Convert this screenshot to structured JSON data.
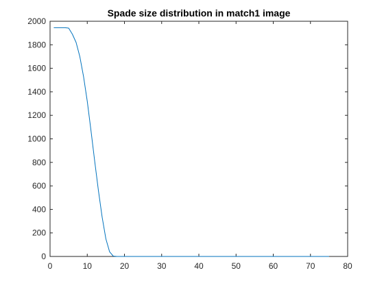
{
  "chart_data": {
    "type": "line",
    "title": "Spade size distribution in match1 image",
    "xlabel": "",
    "ylabel": "",
    "xlim": [
      0,
      80
    ],
    "ylim": [
      0,
      2000
    ],
    "xticks": [
      0,
      10,
      20,
      30,
      40,
      50,
      60,
      70,
      80
    ],
    "yticks": [
      0,
      200,
      400,
      600,
      800,
      1000,
      1200,
      1400,
      1600,
      1800,
      2000
    ],
    "grid": false,
    "legend": "none",
    "series": [
      {
        "color": "#0072BD",
        "x": [
          1,
          2,
          3,
          4,
          5,
          6,
          7,
          8,
          9,
          10,
          11,
          12,
          13,
          14,
          15,
          16,
          17,
          18,
          19,
          20,
          25,
          30,
          35,
          40,
          45,
          50,
          55,
          60,
          65,
          70,
          75
        ],
        "y": [
          1945,
          1945,
          1945,
          1945,
          1942,
          1890,
          1820,
          1700,
          1530,
          1320,
          1070,
          810,
          560,
          335,
          150,
          40,
          3,
          0,
          0,
          0,
          0,
          0,
          0,
          0,
          0,
          0,
          0,
          0,
          0,
          0,
          0
        ]
      }
    ]
  }
}
